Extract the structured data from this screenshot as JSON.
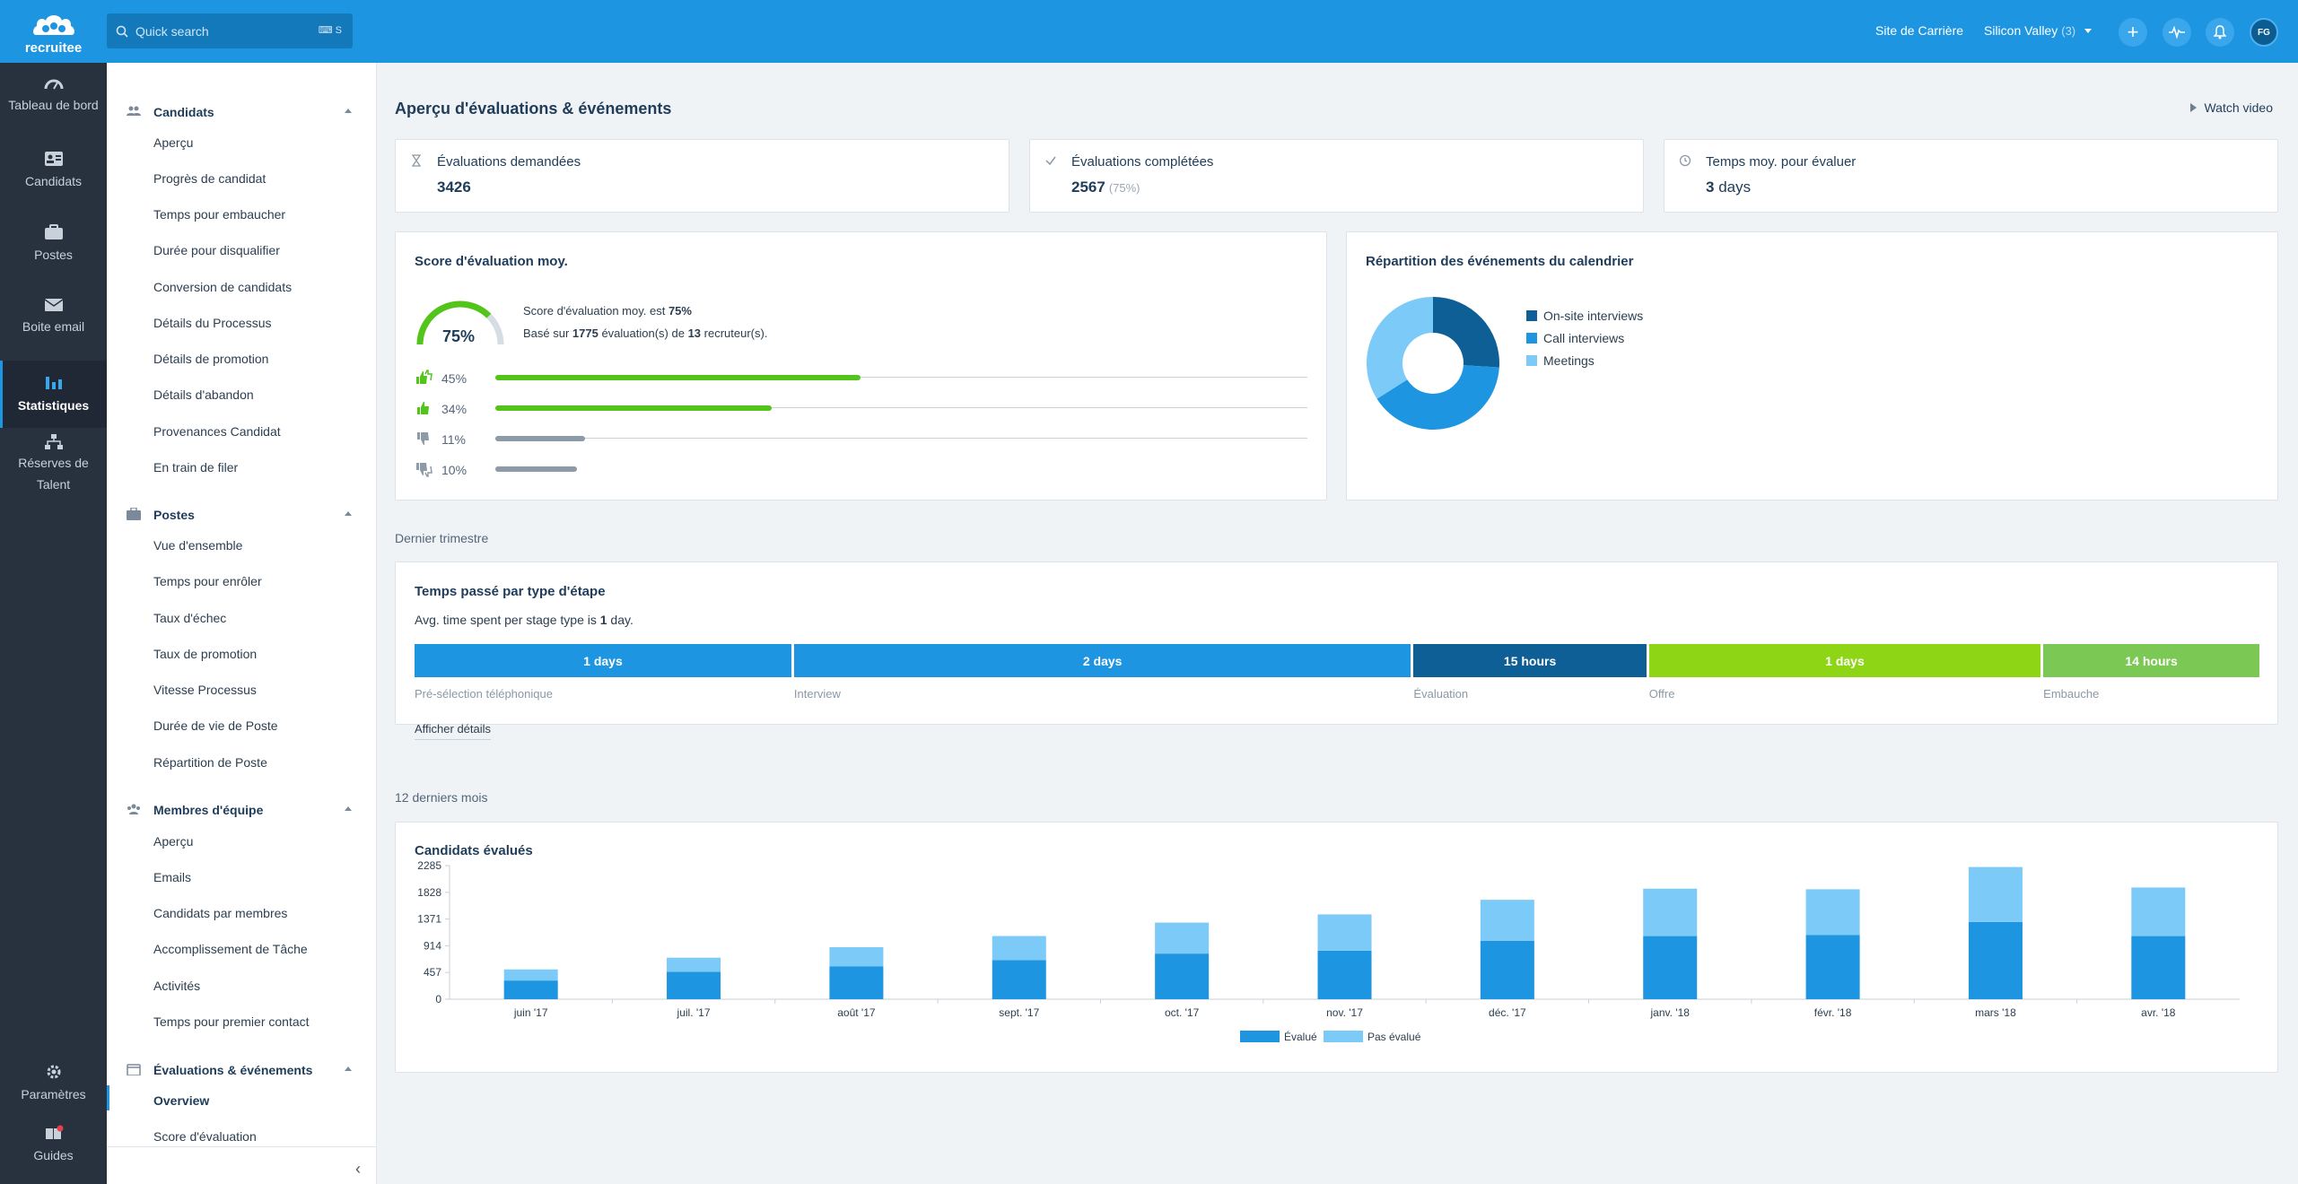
{
  "app": {
    "logo_text": "recruitee"
  },
  "topbar": {
    "search_placeholder": "Quick search",
    "search_shortcut": "S",
    "career_site": "Site de Carrière",
    "company": "Silicon Valley",
    "company_count": "(3)",
    "avatar_initials": "FG"
  },
  "leftnav": {
    "items": [
      {
        "label": "Tableau de bord",
        "icon": "gauge-icon"
      },
      {
        "label": "Candidats",
        "icon": "id-card-icon"
      },
      {
        "label": "Postes",
        "icon": "briefcase-icon"
      },
      {
        "label": "Boite email",
        "icon": "mail-icon"
      },
      {
        "label": "Statistiques",
        "icon": "bar-chart-icon",
        "active": true
      },
      {
        "label": "Réserves de Talent",
        "icon": "org-chart-icon"
      },
      {
        "label": "Paramètres",
        "icon": "gear-icon"
      },
      {
        "label": "Guides",
        "icon": "book-icon"
      }
    ]
  },
  "sidebar": {
    "sections": [
      {
        "title": "Candidats",
        "items": [
          "Aperçu",
          "Progrès de candidat",
          "Temps pour embaucher",
          "Durée pour disqualifier",
          "Conversion de candidats",
          "Détails du Processus",
          "Détails de promotion",
          "Détails d'abandon",
          "Provenances Candidat",
          "En train de filer"
        ]
      },
      {
        "title": "Postes",
        "items": [
          "Vue d'ensemble",
          "Temps pour enrôler",
          "Taux d'échec",
          "Taux de promotion",
          "Vitesse Processus",
          "Durée de vie de Poste",
          "Répartition de Poste"
        ]
      },
      {
        "title": "Membres d'équipe",
        "items": [
          "Aperçu",
          "Emails",
          "Candidats par membres",
          "Accomplissement de Tâche",
          "Activités",
          "Temps pour premier contact"
        ]
      },
      {
        "title": "Évaluations & événements",
        "items": [
          "Overview",
          "Score d'évaluation"
        ]
      }
    ]
  },
  "main": {
    "title": "Aperçu d'évaluations & événements",
    "watch_video": "Watch video",
    "kpis": [
      {
        "title": "Évaluations demandées",
        "value": "3426"
      },
      {
        "title": "Évaluations complétées",
        "value": "2567",
        "sub": "(75%)"
      },
      {
        "title": "Temps moy. pour évaluer",
        "value_num": "3",
        "value_unit": "days"
      }
    ],
    "score_card": {
      "title": "Score d'évaluation moy.",
      "gauge_value": "75%",
      "gauge_fraction": 0.75,
      "line1_prefix": "Score d'évaluation moy. est ",
      "line1_value": "75%",
      "line2_prefix": "Basé sur ",
      "line2_count": "1775",
      "line2_mid": " évaluation(s) de ",
      "line2_recruiters": "13",
      "line2_suffix": " recruteur(s).",
      "rows": [
        {
          "label": "45%",
          "value": 0.45,
          "color": "#52c41a",
          "icon": "double-thumbs-up-icon"
        },
        {
          "label": "34%",
          "value": 0.34,
          "color": "#52c41a",
          "icon": "thumbs-up-icon"
        },
        {
          "label": "11%",
          "value": 0.11,
          "color": "#8d9aa7",
          "icon": "thumbs-down-icon"
        },
        {
          "label": "10%",
          "value": 0.1,
          "color": "#8d9aa7",
          "icon": "double-thumbs-down-icon"
        }
      ]
    },
    "calendar_card": {
      "title": "Répartition des événements du calendrier",
      "slices": [
        {
          "label": "On-site interviews",
          "value": 26,
          "color": "#0e5f96"
        },
        {
          "label": "Call interviews",
          "value": 40,
          "color": "#1e95e0"
        },
        {
          "label": "Meetings",
          "value": 34,
          "color": "#7ccaf8"
        }
      ]
    },
    "quarter_label": "Dernier trimestre",
    "stage_card": {
      "title": "Temps passé par type d'étape",
      "avg_prefix": "Avg. time spent per stage type is ",
      "avg_value": "1",
      "avg_suffix": " day.",
      "stages": [
        {
          "value": "1 days",
          "label": "Pré-sélection téléphonique",
          "color": "#1e95e0",
          "share": 0.204
        },
        {
          "value": "2 days",
          "label": "Interview",
          "color": "#1e95e0",
          "share": 0.334
        },
        {
          "value": "15 hours",
          "label": "Évaluation",
          "color": "#0e5f96",
          "share": 0.126
        },
        {
          "value": "1 days",
          "label": "Offre",
          "color": "#8ed615",
          "share": 0.212
        },
        {
          "value": "14 hours",
          "label": "Embauche",
          "color": "#7cc855",
          "share": 0.117
        }
      ],
      "details_link": "Afficher détails"
    },
    "months_label": "12 derniers mois"
  },
  "chart_data": {
    "type": "bar",
    "stacked": true,
    "title": "Candidats évalués",
    "categories": [
      "juin '17",
      "juil. '17",
      "août '17",
      "sept. '17",
      "oct. '17",
      "nov. '17",
      "déc. '17",
      "janv. '18",
      "févr. '18",
      "mars '18",
      "avr. '18"
    ],
    "series": [
      {
        "name": "Évalué",
        "color": "#1e95e0",
        "values": [
          320,
          470,
          560,
          670,
          780,
          830,
          1000,
          1080,
          1100,
          1320,
          1080
        ]
      },
      {
        "name": "Pas évalué",
        "color": "#7ccaf8",
        "values": [
          190,
          240,
          330,
          410,
          530,
          620,
          700,
          810,
          780,
          940,
          830
        ]
      }
    ],
    "yticks": [
      0,
      457,
      914,
      1371,
      1828,
      2285
    ],
    "ylim": [
      0,
      2285
    ],
    "legend_position": "bottom-center",
    "grid": false
  }
}
